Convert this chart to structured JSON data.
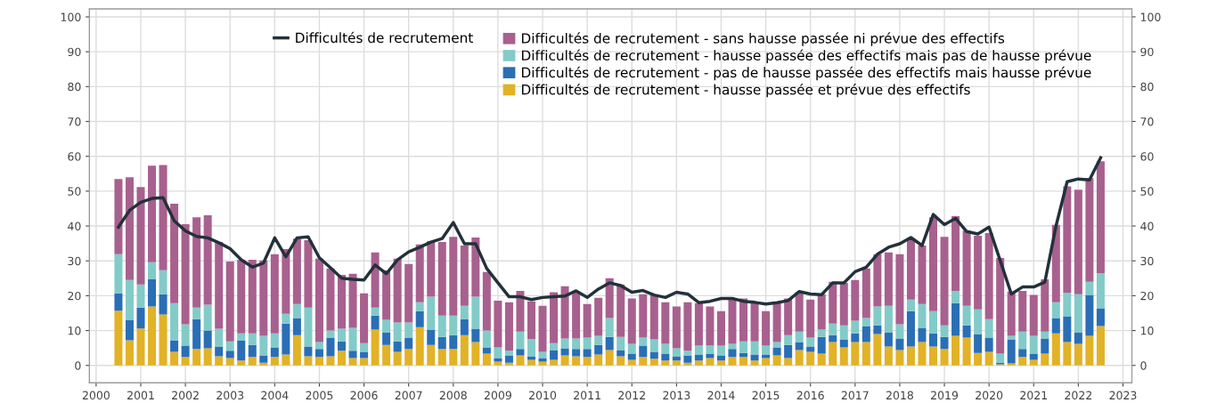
{
  "chart_data": {
    "type": "bar",
    "stacked": true,
    "x": [
      2000.5,
      2000.75,
      2001,
      2001.25,
      2001.5,
      2001.75,
      2002,
      2002.25,
      2002.5,
      2002.75,
      2003,
      2003.25,
      2003.5,
      2003.75,
      2004,
      2004.25,
      2004.5,
      2004.75,
      2005,
      2005.25,
      2005.5,
      2005.75,
      2006,
      2006.25,
      2006.5,
      2006.75,
      2007,
      2007.25,
      2007.5,
      2007.75,
      2008,
      2008.25,
      2008.5,
      2008.75,
      2009,
      2009.25,
      2009.5,
      2009.75,
      2010,
      2010.25,
      2010.5,
      2010.75,
      2011,
      2011.25,
      2011.5,
      2011.75,
      2012,
      2012.25,
      2012.5,
      2012.75,
      2013,
      2013.25,
      2013.5,
      2013.75,
      2014,
      2014.25,
      2014.5,
      2014.75,
      2015,
      2015.25,
      2015.5,
      2015.75,
      2016,
      2016.25,
      2016.5,
      2016.75,
      2017,
      2017.25,
      2017.5,
      2017.75,
      2018,
      2018.25,
      2018.5,
      2018.75,
      2019,
      2019.25,
      2019.5,
      2019.75,
      2020,
      2020.25,
      2020.5,
      2020.75,
      2021,
      2021.25,
      2021.5,
      2021.75,
      2022,
      2022.25,
      2022.5
    ],
    "series": [
      {
        "name": "Difficultés de recrutement - hausse passée et prévue des effectifs",
        "color": "#e2b227",
        "values": [
          15.7,
          7.2,
          10.6,
          16.9,
          14.6,
          3.9,
          2.4,
          4.7,
          4.9,
          2.6,
          2.1,
          1.4,
          2.4,
          0.8,
          2.4,
          3.1,
          8.7,
          2.6,
          2.4,
          2.6,
          4.2,
          2.1,
          2.1,
          10.3,
          5.9,
          3.9,
          4.7,
          11.0,
          5.9,
          4.7,
          4.7,
          8.7,
          6.7,
          3.4,
          1.1,
          0.8,
          2.9,
          1.6,
          1.1,
          1.6,
          2.9,
          2.6,
          2.4,
          3.1,
          4.4,
          2.6,
          1.6,
          2.4,
          1.9,
          1.4,
          1.4,
          0.8,
          1.4,
          2.1,
          1.4,
          2.4,
          2.4,
          1.4,
          2.1,
          2.9,
          2.1,
          4.4,
          3.9,
          3.4,
          6.7,
          5.2,
          6.7,
          6.7,
          9.0,
          5.4,
          4.4,
          5.4,
          6.7,
          5.4,
          4.7,
          8.5,
          8.0,
          3.6,
          3.9,
          0.3,
          0.6,
          2.4,
          1.6,
          3.4,
          9.2,
          6.7,
          6.2,
          8.5,
          11.3
        ]
      },
      {
        "name": "Difficultés de recrutement - pas de hausse passée des effectifs mais hausse prévue",
        "color": "#2a6eb6",
        "values": [
          5.0,
          5.9,
          6.0,
          7.8,
          5.8,
          3.3,
          3.3,
          8.6,
          5.1,
          2.8,
          2.1,
          5.8,
          3.5,
          2.1,
          2.8,
          8.9,
          4.9,
          2.8,
          2.3,
          5.4,
          2.7,
          2.1,
          1.8,
          4.0,
          3.6,
          3.0,
          3.3,
          4.6,
          4.4,
          3.5,
          4.0,
          4.6,
          3.8,
          1.8,
          1.0,
          2.1,
          1.8,
          1.0,
          1.0,
          2.8,
          2.0,
          2.1,
          2.3,
          2.8,
          3.8,
          1.8,
          1.8,
          3.3,
          2.0,
          2.0,
          1.2,
          2.1,
          1.7,
          1.3,
          1.5,
          2.3,
          1.2,
          1.7,
          1.0,
          2.3,
          3.8,
          2.3,
          1.5,
          4.8,
          2.0,
          2.3,
          2.5,
          4.6,
          2.5,
          4.1,
          3.3,
          10.2,
          4.1,
          3.8,
          3.5,
          9.4,
          3.5,
          5.4,
          4.1,
          0.5,
          6.9,
          2.3,
          1.8,
          4.3,
          4.4,
          7.4,
          3.3,
          11.7,
          5.1
        ]
      },
      {
        "name": "Difficultés de recrutement - hausse passée des effectifs mais pas de hausse prévue",
        "color": "#82cbc9",
        "values": [
          11.2,
          11.4,
          6.6,
          4.9,
          6.9,
          10.7,
          6.1,
          3.3,
          7.4,
          5.1,
          2.7,
          2.0,
          3.3,
          5.6,
          4.0,
          2.8,
          4.0,
          11.2,
          2.0,
          2.0,
          3.6,
          6.6,
          2.5,
          2.3,
          3.6,
          5.4,
          4.3,
          2.5,
          9.4,
          6.1,
          5.6,
          3.8,
          9.2,
          4.8,
          3.1,
          1.3,
          5.0,
          5.0,
          1.8,
          2.0,
          2.8,
          3.0,
          3.3,
          2.6,
          5.4,
          3.8,
          2.8,
          2.3,
          3.6,
          2.8,
          2.3,
          1.3,
          2.6,
          2.3,
          2.8,
          1.5,
          3.3,
          3.8,
          2.6,
          1.5,
          2.8,
          3.0,
          2.6,
          2.1,
          3.3,
          4.0,
          3.6,
          2.3,
          5.4,
          7.6,
          4.1,
          3.3,
          6.8,
          6.4,
          3.3,
          3.5,
          5.6,
          7.1,
          5.3,
          2.6,
          1.0,
          5.0,
          5.1,
          2.0,
          4.5,
          6.8,
          10.9,
          3.8,
          10.1
        ]
      },
      {
        "name": "Difficultés de recrutement - sans hausse passée ni prévue des effectifs",
        "color": "#a8608f",
        "values": [
          21.6,
          29.5,
          28.0,
          27.7,
          30.2,
          28.5,
          28.7,
          25.9,
          25.7,
          24.9,
          22.9,
          21.1,
          21.1,
          21.6,
          22.7,
          18.6,
          18.8,
          19.3,
          23.9,
          17.8,
          15.5,
          15.5,
          14.3,
          15.8,
          14.2,
          18.3,
          16.8,
          16.6,
          16.0,
          21.1,
          22.6,
          17.3,
          17.0,
          16.8,
          13.4,
          13.9,
          11.7,
          10.8,
          13.2,
          14.6,
          15.0,
          13.3,
          9.6,
          10.9,
          11.4,
          15.0,
          13.0,
          12.4,
          12.7,
          11.9,
          12.0,
          13.9,
          12.2,
          11.2,
          9.9,
          12.7,
          12.3,
          11.0,
          9.9,
          11.4,
          10.5,
          11.3,
          10.9,
          10.1,
          12.0,
          12.2,
          11.7,
          14.2,
          15.0,
          15.3,
          20.1,
          17.5,
          16.8,
          26.9,
          25.4,
          21.4,
          21.6,
          21.1,
          24.7,
          27.4,
          12.7,
          11.7,
          11.7,
          15.0,
          22.2,
          30.5,
          30.0,
          29.7,
          32.1
        ]
      },
      {
        "name": "Difficultés de recrutement",
        "type": "line",
        "color": "#22313a",
        "values": [
          39.7,
          44.5,
          46.8,
          47.9,
          48.1,
          41.5,
          38.6,
          37.0,
          36.6,
          35.2,
          33.5,
          30.3,
          28.2,
          29.4,
          36.6,
          31.2,
          36.6,
          36.9,
          30.9,
          28.0,
          25.0,
          24.7,
          24.5,
          28.8,
          26.3,
          30.3,
          32.6,
          33.9,
          35.4,
          36.4,
          41.0,
          34.9,
          34.9,
          27.8,
          23.7,
          19.7,
          19.7,
          18.9,
          19.5,
          19.7,
          19.9,
          21.4,
          19.5,
          21.9,
          23.7,
          22.9,
          21.0,
          21.5,
          20.2,
          19.5,
          21.0,
          20.5,
          18.0,
          18.4,
          19.2,
          19.2,
          18.4,
          18.1,
          17.6,
          18.0,
          18.6,
          21.2,
          20.5,
          20.3,
          23.7,
          23.7,
          26.9,
          28.2,
          31.9,
          33.9,
          34.9,
          36.7,
          34.4,
          43.3,
          40.4,
          42.2,
          38.4,
          37.7,
          39.7,
          30.1,
          20.5,
          22.5,
          22.5,
          23.9,
          40.0,
          52.7,
          53.5,
          53.2,
          59.6
        ]
      }
    ],
    "xlim": [
      1999.85,
      2023.2
    ],
    "xticks": [
      2000,
      2001,
      2002,
      2003,
      2004,
      2005,
      2006,
      2007,
      2008,
      2009,
      2010,
      2011,
      2012,
      2013,
      2014,
      2015,
      2016,
      2017,
      2018,
      2019,
      2020,
      2021,
      2022,
      2023
    ],
    "ylim": [
      -5,
      102.3
    ],
    "yticks": [
      0,
      10,
      20,
      30,
      40,
      50,
      60,
      70,
      80,
      90,
      100
    ],
    "y2lim": [
      -5,
      102.3
    ],
    "y2ticks": [
      0,
      10,
      20,
      30,
      40,
      50,
      60,
      70,
      80,
      90,
      100
    ],
    "grid": true,
    "legend": "top",
    "marker": "none",
    "line_style": "solid"
  }
}
